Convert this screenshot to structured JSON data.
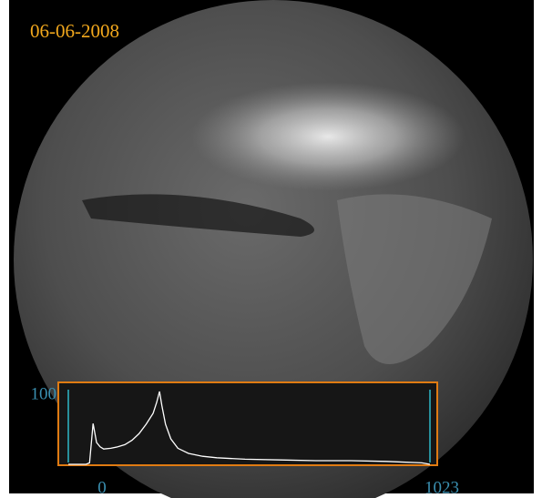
{
  "chart_data": {
    "type": "line",
    "title": "06-06-2008",
    "x": [
      0,
      10,
      20,
      30,
      40,
      50,
      60,
      70,
      80,
      90,
      100,
      120,
      140,
      160,
      180,
      200,
      220,
      240,
      250,
      258,
      265,
      275,
      290,
      310,
      340,
      380,
      420,
      500,
      600,
      700,
      800,
      900,
      1000,
      1023
    ],
    "series": [
      {
        "color": "#ffffff",
        "values": [
          0,
          0,
          0,
          0,
          0,
          0,
          2,
          56,
          30,
          24,
          21,
          22,
          24,
          27,
          33,
          42,
          55,
          70,
          85,
          100,
          80,
          55,
          35,
          22,
          15,
          11,
          9,
          7,
          6,
          5,
          5,
          4,
          2,
          0
        ]
      }
    ],
    "xlim": [
      0,
      1023
    ],
    "xticks": [
      0,
      1023
    ],
    "ylim": [
      0,
      100
    ],
    "yticks": [
      100
    ],
    "frame_color": "#e07b12",
    "tick_color": "#2fb8c8",
    "label_color": "#3a8fb0"
  }
}
